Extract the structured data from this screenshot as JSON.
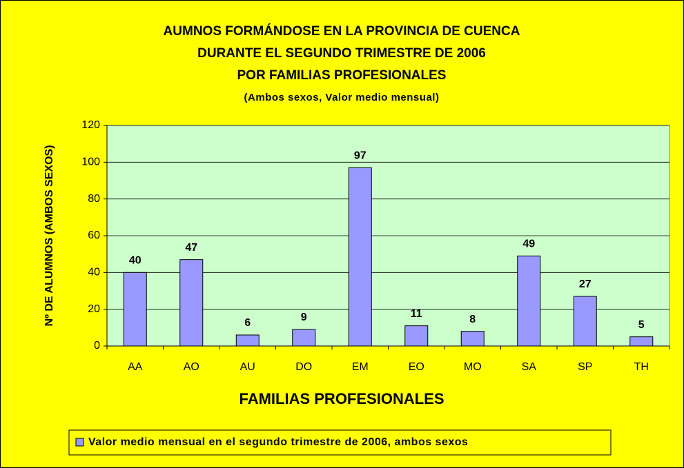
{
  "chart_data": {
    "type": "bar",
    "title": [
      "AUMNOS FORMÁNDOSE EN LA PROVINCIA DE CUENCA",
      "DURANTE EL SEGUNDO TRIMESTRE DE 2006",
      "POR FAMILIAS PROFESIONALES"
    ],
    "subtitle": "(Ambos sexos, Valor medio mensual)",
    "xlabel": "FAMILIAS PROFESIONALES",
    "ylabel": "Nº DE ALUMNOS (AMBOS SEXOS)",
    "categories": [
      "AA",
      "AO",
      "AU",
      "DO",
      "EM",
      "EO",
      "MO",
      "SA",
      "SP",
      "TH"
    ],
    "series": [
      {
        "name": "Valor medio mensual en el segundo trimestre de 2006, ambos sexos",
        "color": "#9999ff",
        "values": [
          40,
          47,
          6,
          9,
          97,
          11,
          8,
          49,
          27,
          5
        ]
      }
    ],
    "ylim": [
      0,
      120
    ],
    "yticks": [
      0,
      20,
      40,
      60,
      80,
      100,
      120
    ],
    "grid": true,
    "legend": "bottom"
  }
}
